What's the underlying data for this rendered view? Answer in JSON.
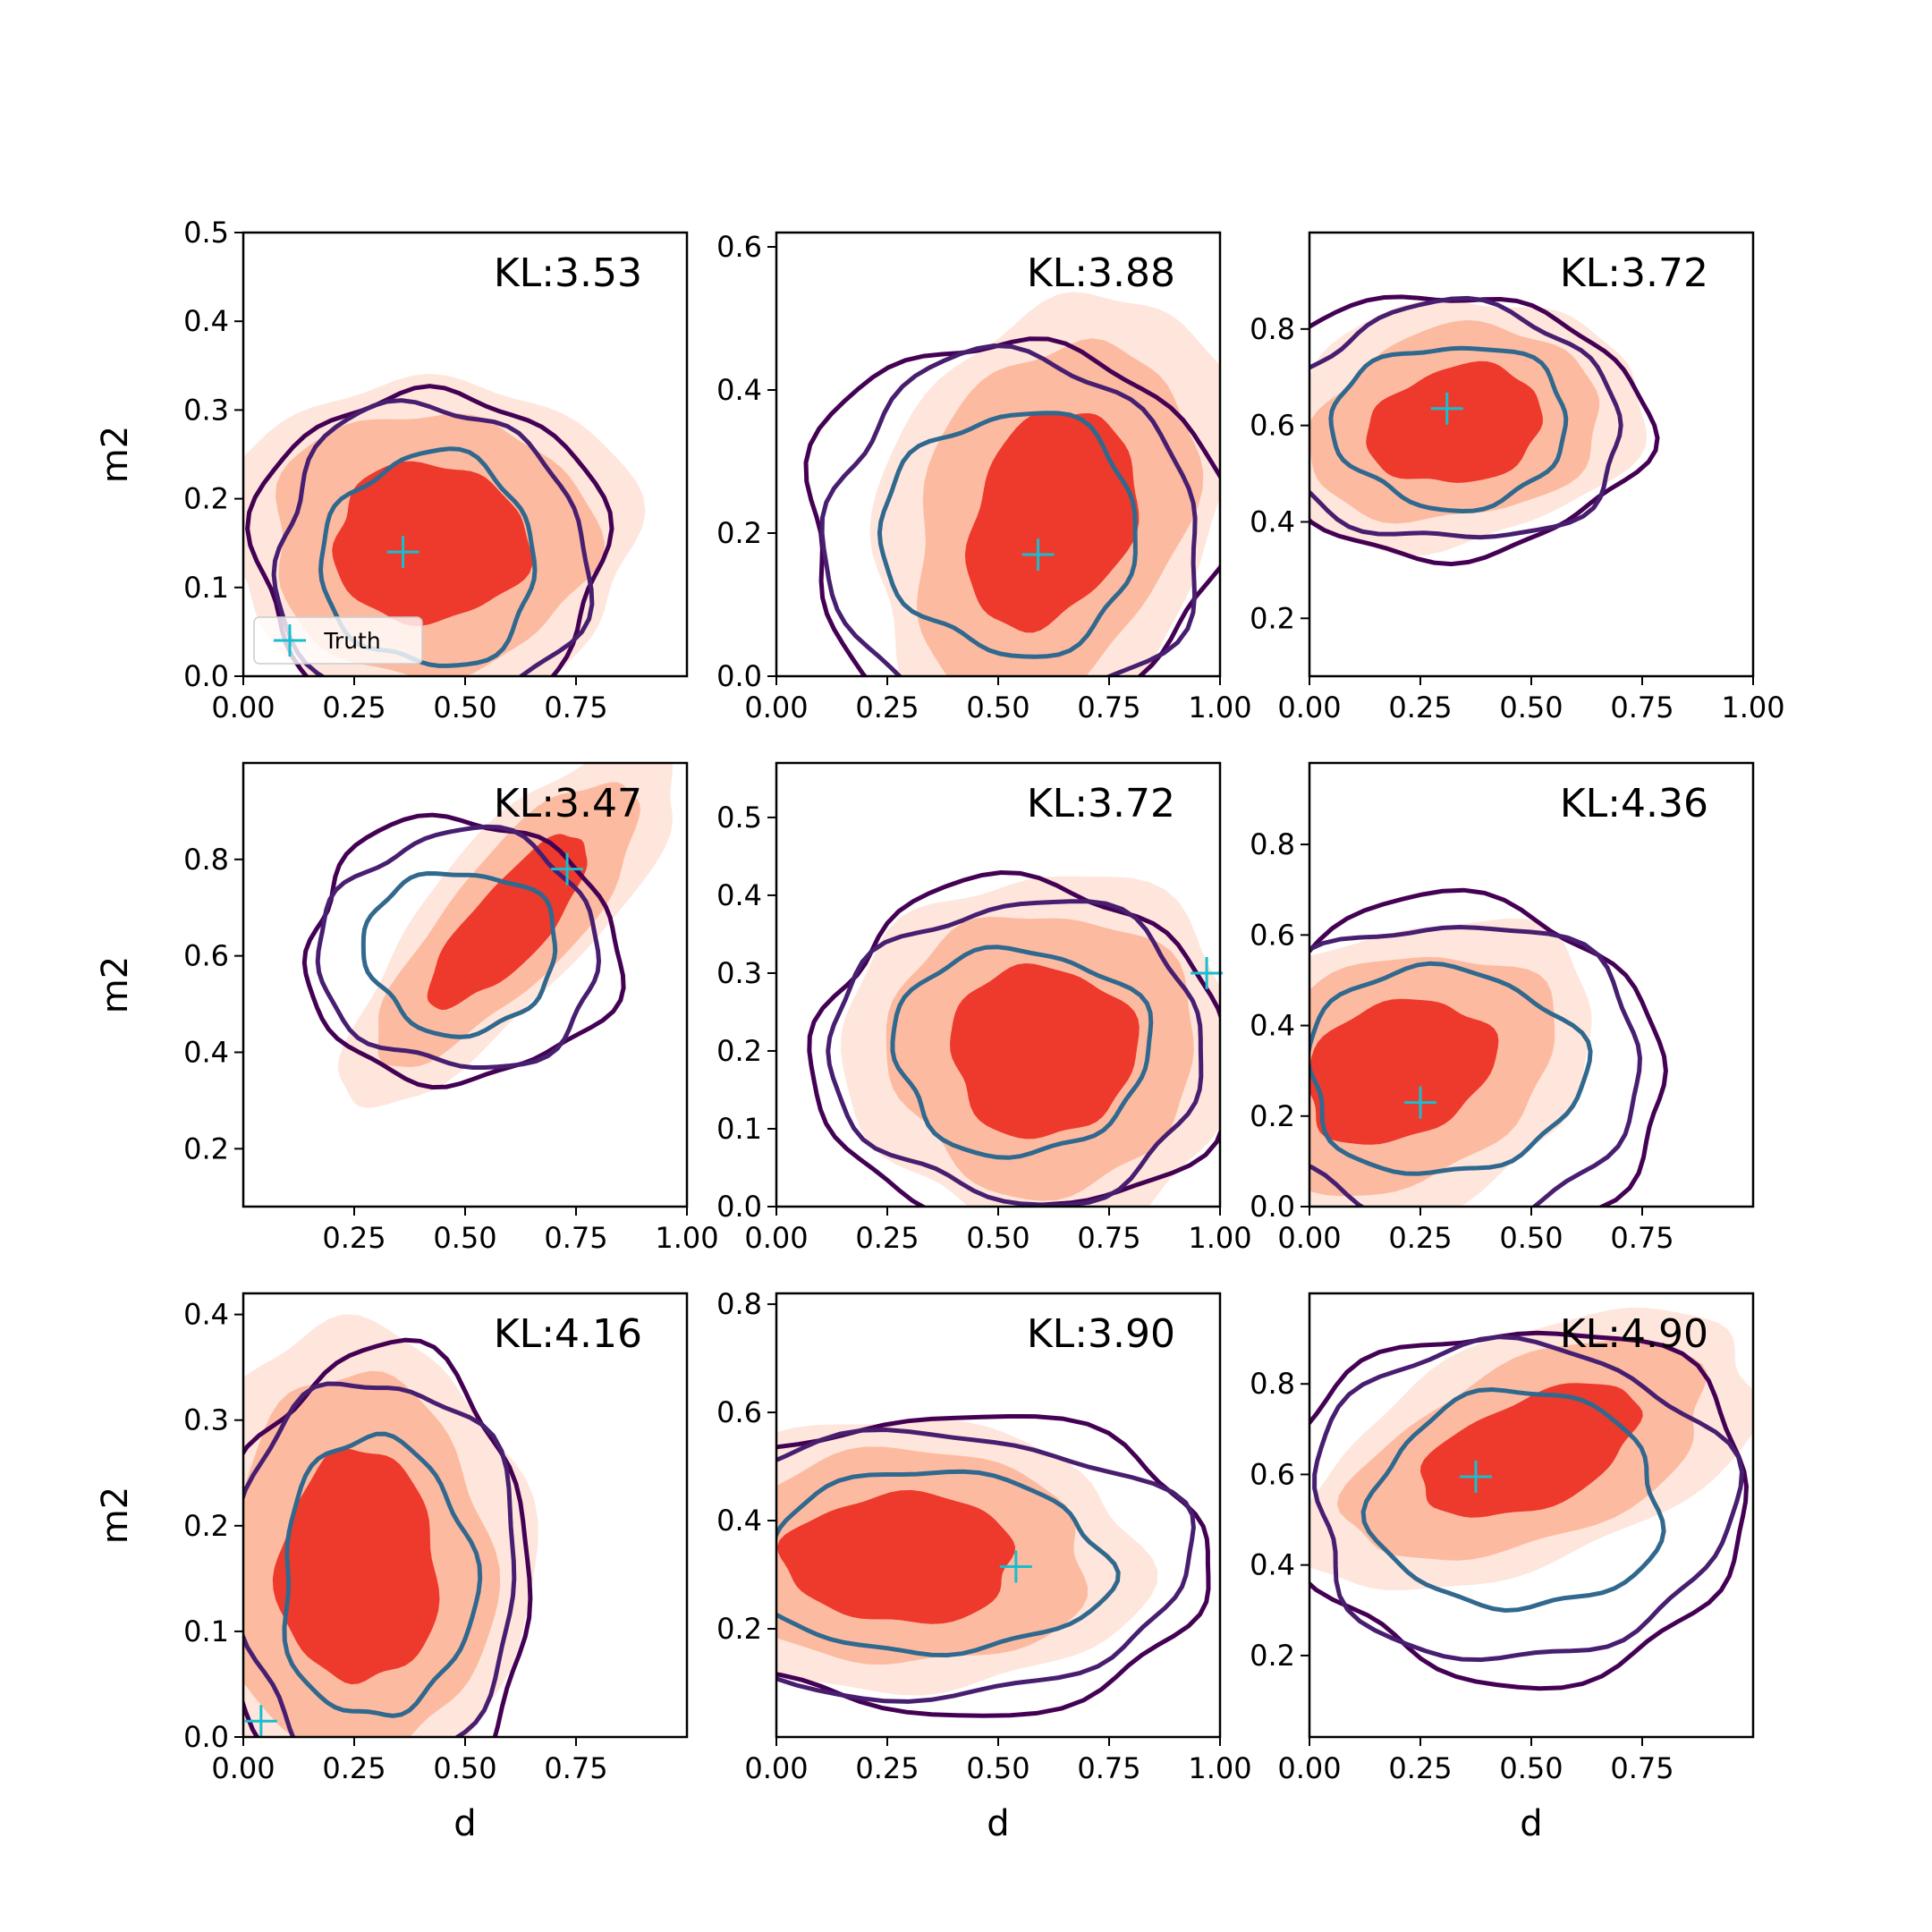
{
  "figure": {
    "xlabel": "d",
    "ylabel": "m2",
    "legend": {
      "label": "Truth",
      "location": "lower-left of first panel",
      "marker": "+"
    }
  },
  "colors": {
    "fill_levels": [
      "#fee6dc",
      "#fcbba1",
      "#ee3a2c"
    ],
    "contour_levels": [
      "#440154",
      "#481f70",
      "#31688e"
    ],
    "truth_marker": "#17becf"
  },
  "chart_data": [
    {
      "type": "contour",
      "kl": "KL:3.53",
      "xlim": [
        0,
        1.0
      ],
      "ylim": [
        0,
        0.5
      ],
      "xticks": [
        "0.00",
        "0.25",
        "0.50",
        "0.75"
      ],
      "yticks": [
        "0.0",
        "0.1",
        "0.2",
        "0.3",
        "0.4",
        "0.5"
      ],
      "truth": [
        0.36,
        0.14
      ],
      "fill_center": [
        0.42,
        0.15
      ],
      "fill_spread": [
        0.22,
        0.09
      ],
      "fill_rotation_deg": 0,
      "contour_center": [
        0.42,
        0.13
      ],
      "contour_spread": [
        0.2,
        0.1
      ],
      "show_ylabel": true,
      "show_xlabel": false,
      "show_legend": true
    },
    {
      "type": "contour",
      "kl": "KL:3.88",
      "xlim": [
        0,
        1.0
      ],
      "ylim": [
        0,
        0.62
      ],
      "xticks": [
        "0.00",
        "0.25",
        "0.50",
        "0.75",
        "1.00"
      ],
      "yticks": [
        "0.0",
        "0.2",
        "0.4",
        "0.6"
      ],
      "truth": [
        0.59,
        0.17
      ],
      "fill_center": [
        0.62,
        0.22
      ],
      "fill_spread": [
        0.2,
        0.14
      ],
      "fill_rotation_deg": 25,
      "contour_center": [
        0.53,
        0.2
      ],
      "contour_spread": [
        0.24,
        0.14
      ],
      "show_ylabel": false,
      "show_xlabel": false,
      "show_legend": false
    },
    {
      "type": "contour",
      "kl": "KL:3.72",
      "xlim": [
        0,
        1.0
      ],
      "ylim": [
        0.08,
        1.0
      ],
      "xticks": [
        "0.00",
        "0.25",
        "0.50",
        "0.75",
        "1.00"
      ],
      "yticks": [
        "0.2",
        "0.4",
        "0.6",
        "0.8"
      ],
      "truth": [
        0.31,
        0.635
      ],
      "fill_center": [
        0.33,
        0.6
      ],
      "fill_spread": [
        0.2,
        0.12
      ],
      "fill_rotation_deg": 10,
      "contour_center": [
        0.32,
        0.6
      ],
      "contour_spread": [
        0.22,
        0.14
      ],
      "show_ylabel": false,
      "show_xlabel": false,
      "show_legend": false
    },
    {
      "type": "contour",
      "kl": "KL:3.47",
      "xlim": [
        0,
        1.0
      ],
      "ylim": [
        0.08,
        1.0
      ],
      "xticks": [
        "0.25",
        "0.50",
        "0.75",
        "1.00"
      ],
      "yticks": [
        "0.2",
        "0.4",
        "0.6",
        "0.8"
      ],
      "truth": [
        0.73,
        0.78
      ],
      "fill_center": [
        0.6,
        0.67
      ],
      "fill_spread": [
        0.24,
        0.08
      ],
      "fill_rotation_deg": 45,
      "contour_center": [
        0.49,
        0.61
      ],
      "contour_spread": [
        0.18,
        0.14
      ],
      "show_ylabel": true,
      "show_xlabel": false,
      "show_legend": false
    },
    {
      "type": "contour",
      "kl": "KL:3.72",
      "xlim": [
        0,
        1.0
      ],
      "ylim": [
        0,
        0.57
      ],
      "xticks": [
        "0.00",
        "0.25",
        "0.50",
        "0.75",
        "1.00"
      ],
      "yticks": [
        "0.0",
        "0.1",
        "0.2",
        "0.3",
        "0.4",
        "0.5"
      ],
      "truth": [
        0.97,
        0.3
      ],
      "fill_center": [
        0.6,
        0.2
      ],
      "fill_spread": [
        0.21,
        0.11
      ],
      "fill_rotation_deg": 0,
      "contour_center": [
        0.55,
        0.2
      ],
      "contour_spread": [
        0.24,
        0.11
      ],
      "show_ylabel": false,
      "show_xlabel": false,
      "show_legend": false
    },
    {
      "type": "contour",
      "kl": "KL:4.36",
      "xlim": [
        0,
        1.0
      ],
      "ylim": [
        0,
        0.98
      ],
      "xticks": [
        "0.00",
        "0.25",
        "0.50",
        "0.75"
      ],
      "yticks": [
        "0.0",
        "0.2",
        "0.4",
        "0.6",
        "0.8"
      ],
      "truth": [
        0.25,
        0.23
      ],
      "fill_center": [
        0.2,
        0.3
      ],
      "fill_spread": [
        0.22,
        0.15
      ],
      "fill_rotation_deg": 20,
      "contour_center": [
        0.3,
        0.3
      ],
      "contour_spread": [
        0.26,
        0.19
      ],
      "show_ylabel": false,
      "show_xlabel": false,
      "show_legend": false
    },
    {
      "type": "contour",
      "kl": "KL:4.16",
      "xlim": [
        0,
        1.0
      ],
      "ylim": [
        0,
        0.42
      ],
      "xticks": [
        "0.00",
        "0.25",
        "0.50",
        "0.75"
      ],
      "yticks": [
        "0.0",
        "0.1",
        "0.2",
        "0.3",
        "0.4"
      ],
      "truth": [
        0.04,
        0.015
      ],
      "fill_center": [
        0.26,
        0.16
      ],
      "fill_spread": [
        0.18,
        0.11
      ],
      "fill_rotation_deg": 0,
      "contour_center": [
        0.3,
        0.15
      ],
      "contour_spread": [
        0.18,
        0.11
      ],
      "show_ylabel": true,
      "show_xlabel": true,
      "show_legend": false
    },
    {
      "type": "contour",
      "kl": "KL:3.90",
      "xlim": [
        0,
        1.0
      ],
      "ylim": [
        0,
        0.82
      ],
      "xticks": [
        "0.00",
        "0.25",
        "0.50",
        "0.75",
        "1.00"
      ],
      "yticks": [
        "0.2",
        "0.4",
        "0.6",
        "0.8"
      ],
      "truth": [
        0.54,
        0.315
      ],
      "fill_center": [
        0.28,
        0.33
      ],
      "fill_spread": [
        0.26,
        0.12
      ],
      "fill_rotation_deg": 0,
      "contour_center": [
        0.35,
        0.32
      ],
      "contour_spread": [
        0.33,
        0.14
      ],
      "show_ylabel": false,
      "show_xlabel": true,
      "show_legend": false
    },
    {
      "type": "contour",
      "kl": "KL:4.90",
      "xlim": [
        0,
        1.0
      ],
      "ylim": [
        0.02,
        1.0
      ],
      "xticks": [
        "0.00",
        "0.25",
        "0.50",
        "0.75"
      ],
      "yticks": [
        "0.2",
        "0.4",
        "0.6",
        "0.8"
      ],
      "truth": [
        0.375,
        0.595
      ],
      "fill_center": [
        0.5,
        0.65
      ],
      "fill_spread": [
        0.26,
        0.12
      ],
      "fill_rotation_deg": 22,
      "contour_center": [
        0.47,
        0.54
      ],
      "contour_spread": [
        0.27,
        0.2
      ],
      "show_ylabel": false,
      "show_xlabel": true,
      "show_legend": false
    }
  ]
}
